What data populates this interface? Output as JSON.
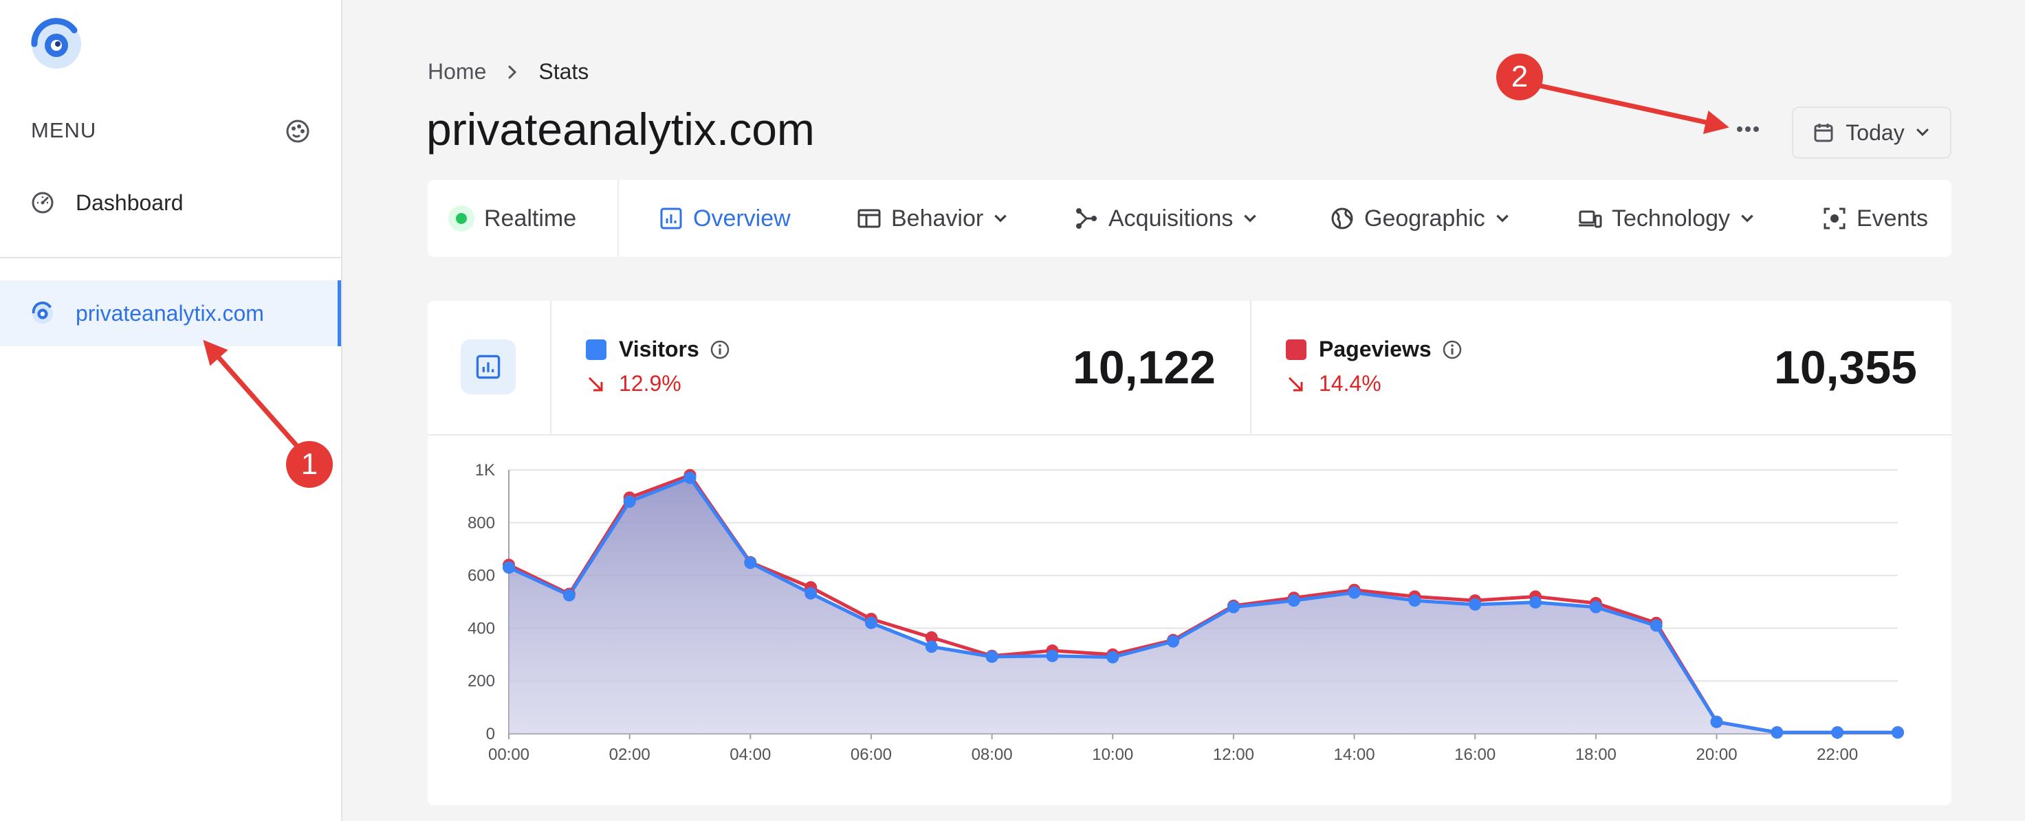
{
  "sidebar": {
    "menu_label": "MENU",
    "items": [
      {
        "label": "Dashboard",
        "icon": "speedometer-icon"
      },
      {
        "label": "privateanalytix.com",
        "icon": "site-logo-icon",
        "active": true
      }
    ]
  },
  "breadcrumb": {
    "home": "Home",
    "current": "Stats"
  },
  "page": {
    "title": "privateanalytix.com"
  },
  "toolbar": {
    "date_range": "Today"
  },
  "tabs": [
    {
      "label": "Realtime"
    },
    {
      "label": "Overview",
      "active": true
    },
    {
      "label": "Behavior"
    },
    {
      "label": "Acquisitions"
    },
    {
      "label": "Geographic"
    },
    {
      "label": "Technology"
    },
    {
      "label": "Events"
    }
  ],
  "metrics": {
    "visitors": {
      "label": "Visitors",
      "change": "12.9%",
      "value": "10,122",
      "color": "#3b82f6"
    },
    "pageviews": {
      "label": "Pageviews",
      "change": "14.4%",
      "value": "10,355",
      "color": "#dc3545"
    }
  },
  "annotations": {
    "one": "1",
    "two": "2"
  },
  "colors": {
    "accent": "#2f72e4",
    "annotation": "#e53935",
    "area_fill": "#8c8cc4"
  },
  "chart_data": {
    "type": "area",
    "x": [
      "00:00",
      "01:00",
      "02:00",
      "03:00",
      "04:00",
      "05:00",
      "06:00",
      "07:00",
      "08:00",
      "09:00",
      "10:00",
      "11:00",
      "12:00",
      "13:00",
      "14:00",
      "15:00",
      "16:00",
      "17:00",
      "18:00",
      "19:00",
      "20:00",
      "21:00",
      "22:00",
      "23:00"
    ],
    "x_tick_labels": [
      "00:00",
      "02:00",
      "04:00",
      "06:00",
      "08:00",
      "10:00",
      "12:00",
      "14:00",
      "16:00",
      "18:00",
      "20:00",
      "22:00"
    ],
    "y_tick_labels": [
      "0",
      "200",
      "400",
      "600",
      "800",
      "1K"
    ],
    "ylim": [
      0,
      1000
    ],
    "grid": true,
    "series": [
      {
        "name": "Pageviews",
        "color": "#dc3545",
        "values": [
          640,
          530,
          895,
          980,
          650,
          555,
          435,
          365,
          295,
          315,
          300,
          355,
          485,
          515,
          545,
          520,
          505,
          520,
          495,
          420,
          45,
          5,
          5,
          5
        ]
      },
      {
        "name": "Visitors",
        "color": "#3b82f6",
        "values": [
          630,
          525,
          880,
          970,
          648,
          532,
          420,
          330,
          292,
          295,
          290,
          350,
          480,
          505,
          535,
          505,
          490,
          498,
          480,
          410,
          45,
          5,
          5,
          5
        ]
      }
    ]
  }
}
